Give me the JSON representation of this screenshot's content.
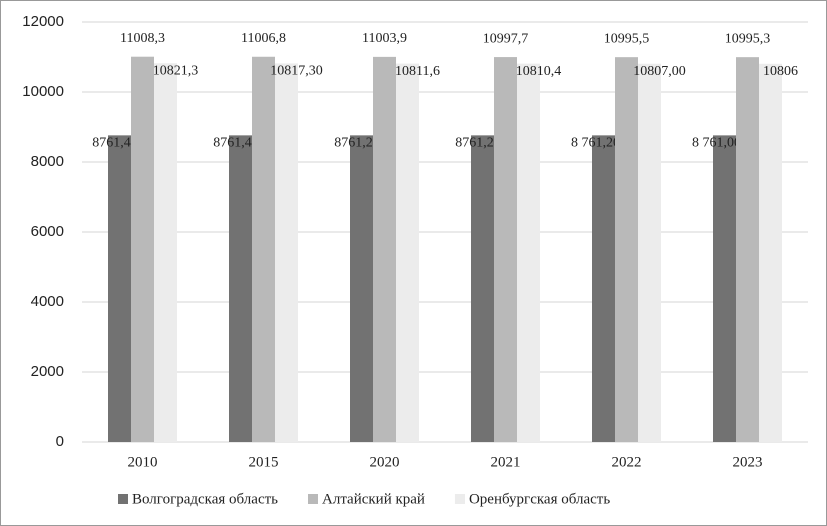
{
  "chart_data": {
    "type": "bar",
    "categories": [
      "2010",
      "2015",
      "2020",
      "2021",
      "2022",
      "2023"
    ],
    "series": [
      {
        "name": "Волгоградская область",
        "color": "#727272",
        "values": [
          8761.4,
          8761.4,
          8761.2,
          8761.2,
          8761.2,
          8761.0
        ],
        "value_labels": [
          "8761,4",
          "8761,4",
          "8761,2",
          "8761,2",
          "8 761,20",
          "8 761,00"
        ]
      },
      {
        "name": "Алтайский край",
        "color": "#b9b9b9",
        "values": [
          11008.3,
          11006.8,
          11003.9,
          10997.7,
          10995.5,
          10995.3
        ],
        "value_labels": [
          "11008,3",
          "11006,8",
          "11003,9",
          "10997,7",
          "10995,5",
          "10995,3"
        ]
      },
      {
        "name": "Оренбургская область",
        "color": "#ececec",
        "values": [
          10821.3,
          10817.3,
          10811.6,
          10810.4,
          10807.0,
          10806
        ],
        "value_labels": [
          "10821,3",
          "10817,30",
          "10811,6",
          "10810,4",
          "10807,00",
          "10806"
        ]
      }
    ],
    "ylim": [
      0,
      12000
    ],
    "yticks": [
      0,
      2000,
      4000,
      6000,
      8000,
      10000,
      12000
    ],
    "grid": true
  }
}
